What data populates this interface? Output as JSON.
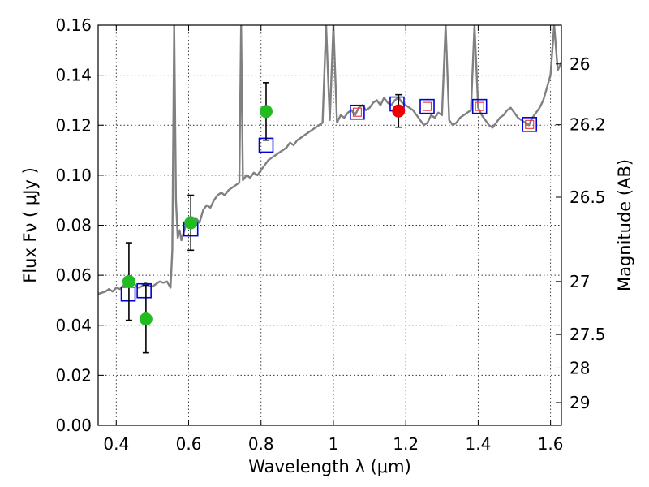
{
  "chart_data": {
    "type": "line",
    "title": "",
    "xlabel": "Wavelength  λ (μm)",
    "ylabel": "Flux  Fν  ( μJy )",
    "ylabel_right": "Magnitude (AB)",
    "xlim": [
      0.35,
      1.63
    ],
    "ylim": [
      0.0,
      0.16
    ],
    "grid": true,
    "x_ticks": [
      0.4,
      0.6,
      0.8,
      1.0,
      1.2,
      1.4,
      1.6
    ],
    "x_tick_labels": [
      "0.4",
      "0.6",
      "0.8",
      "1",
      "1.2",
      "1.4",
      "1.6"
    ],
    "y_ticks": [
      0.0,
      0.02,
      0.04,
      0.06,
      0.08,
      0.1,
      0.12,
      0.14,
      0.16
    ],
    "y_tick_labels": [
      "0.00",
      "0.02",
      "0.04",
      "0.06",
      "0.08",
      "0.10",
      "0.12",
      "0.14",
      "0.16"
    ],
    "right_ticks": [
      {
        "label": "26",
        "flux": 0.1445
      },
      {
        "label": "26.2",
        "flux": 0.1202
      },
      {
        "label": "26.5",
        "flux": 0.0912
      },
      {
        "label": "27",
        "flux": 0.0575
      },
      {
        "label": "27.5",
        "flux": 0.0363
      },
      {
        "label": "28",
        "flux": 0.0229
      },
      {
        "label": "29",
        "flux": 0.0091
      }
    ],
    "colors": {
      "spectrum": "#808080",
      "measured": "#22bb22",
      "measured_highlight": "#ee0000",
      "model_box": "#0000dd",
      "model_box_inner": "#ee3333",
      "errorbar": "#000000"
    },
    "series": [
      {
        "name": "model spectrum",
        "kind": "line",
        "x": [
          0.35,
          0.36,
          0.37,
          0.38,
          0.39,
          0.4,
          0.41,
          0.42,
          0.43,
          0.44,
          0.45,
          0.46,
          0.47,
          0.48,
          0.49,
          0.5,
          0.51,
          0.52,
          0.53,
          0.54,
          0.55,
          0.555,
          0.56,
          0.565,
          0.57,
          0.575,
          0.58,
          0.59,
          0.6,
          0.61,
          0.62,
          0.63,
          0.64,
          0.65,
          0.66,
          0.67,
          0.68,
          0.69,
          0.7,
          0.71,
          0.72,
          0.73,
          0.74,
          0.745,
          0.75,
          0.76,
          0.77,
          0.78,
          0.79,
          0.8,
          0.81,
          0.82,
          0.83,
          0.84,
          0.85,
          0.86,
          0.87,
          0.88,
          0.89,
          0.9,
          0.91,
          0.92,
          0.93,
          0.94,
          0.95,
          0.96,
          0.97,
          0.98,
          0.99,
          1.0,
          1.01,
          1.02,
          1.03,
          1.04,
          1.05,
          1.06,
          1.07,
          1.08,
          1.09,
          1.1,
          1.11,
          1.12,
          1.13,
          1.14,
          1.15,
          1.16,
          1.17,
          1.18,
          1.19,
          1.2,
          1.21,
          1.22,
          1.23,
          1.24,
          1.25,
          1.26,
          1.27,
          1.28,
          1.29,
          1.3,
          1.31,
          1.32,
          1.33,
          1.34,
          1.35,
          1.36,
          1.37,
          1.38,
          1.39,
          1.4,
          1.41,
          1.42,
          1.43,
          1.44,
          1.45,
          1.46,
          1.47,
          1.48,
          1.49,
          1.5,
          1.51,
          1.52,
          1.53,
          1.54,
          1.55,
          1.56,
          1.57,
          1.58,
          1.59,
          1.6,
          1.61,
          1.62,
          1.63
        ],
        "y": [
          0.0525,
          0.053,
          0.0535,
          0.0545,
          0.0535,
          0.055,
          0.0545,
          0.056,
          0.0555,
          0.057,
          0.0565,
          0.055,
          0.0555,
          0.057,
          0.056,
          0.0555,
          0.0565,
          0.0575,
          0.057,
          0.0575,
          0.055,
          0.07,
          0.16,
          0.09,
          0.075,
          0.078,
          0.074,
          0.079,
          0.081,
          0.08,
          0.083,
          0.081,
          0.086,
          0.088,
          0.087,
          0.09,
          0.092,
          0.093,
          0.092,
          0.094,
          0.095,
          0.096,
          0.097,
          0.16,
          0.098,
          0.1,
          0.099,
          0.101,
          0.1,
          0.102,
          0.104,
          0.106,
          0.107,
          0.108,
          0.109,
          0.11,
          0.111,
          0.113,
          0.112,
          0.114,
          0.115,
          0.116,
          0.117,
          0.118,
          0.119,
          0.12,
          0.121,
          0.16,
          0.122,
          0.16,
          0.121,
          0.124,
          0.123,
          0.125,
          0.126,
          0.124,
          0.127,
          0.128,
          0.126,
          0.127,
          0.129,
          0.13,
          0.128,
          0.131,
          0.129,
          0.128,
          0.13,
          0.131,
          0.129,
          0.128,
          0.127,
          0.126,
          0.124,
          0.122,
          0.12,
          0.121,
          0.124,
          0.123,
          0.125,
          0.124,
          0.16,
          0.122,
          0.12,
          0.121,
          0.123,
          0.124,
          0.125,
          0.126,
          0.16,
          0.127,
          0.124,
          0.122,
          0.12,
          0.119,
          0.121,
          0.123,
          0.124,
          0.126,
          0.127,
          0.125,
          0.123,
          0.122,
          0.121,
          0.12,
          0.123,
          0.125,
          0.127,
          0.13,
          0.135,
          0.14,
          0.16,
          0.142,
          0.145
        ]
      },
      {
        "name": "observed photometry",
        "kind": "points",
        "points": [
          {
            "x": 0.435,
            "y": 0.0575,
            "err": 0.0155,
            "color": "#22bb22"
          },
          {
            "x": 0.482,
            "y": 0.0425,
            "err": 0.0135,
            "color": "#22bb22"
          },
          {
            "x": 0.606,
            "y": 0.081,
            "err": 0.011,
            "color": "#22bb22"
          },
          {
            "x": 0.814,
            "y": 0.1255,
            "err": 0.0115,
            "color": "#22bb22"
          },
          {
            "x": 1.18,
            "y": 0.1257,
            "err": 0.0065,
            "color": "#ee0000"
          }
        ]
      },
      {
        "name": "model photometry",
        "kind": "boxes",
        "points": [
          {
            "x": 0.433,
            "y": 0.0525,
            "inner": false
          },
          {
            "x": 0.477,
            "y": 0.0538,
            "inner": false
          },
          {
            "x": 0.606,
            "y": 0.0785,
            "inner": false
          },
          {
            "x": 0.814,
            "y": 0.112,
            "inner": false
          },
          {
            "x": 1.066,
            "y": 0.1252,
            "inner": true
          },
          {
            "x": 1.176,
            "y": 0.1285,
            "inner": false
          },
          {
            "x": 1.259,
            "y": 0.1275,
            "inner": true
          },
          {
            "x": 1.404,
            "y": 0.1275,
            "inner": true
          },
          {
            "x": 1.542,
            "y": 0.1203,
            "inner": true
          }
        ]
      }
    ]
  }
}
